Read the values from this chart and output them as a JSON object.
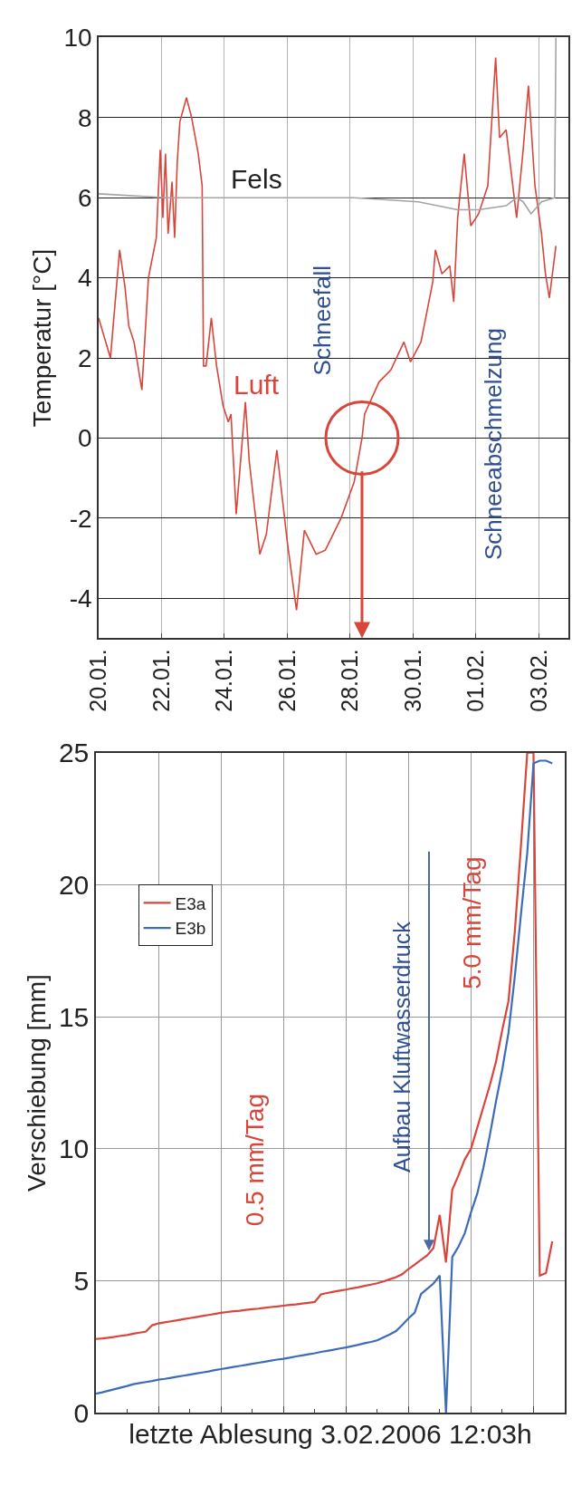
{
  "chart_data": [
    {
      "type": "line",
      "ylabel": "Temperatur [°C]",
      "xlim": [
        "2006-01-20",
        "2006-02-03T22:30"
      ],
      "ylim": [
        -5,
        10
      ],
      "yticks": [
        -4,
        -2,
        0,
        2,
        4,
        6,
        8,
        10
      ],
      "xticks": [
        {
          "value": "2006-01-20",
          "label": "20.01."
        },
        {
          "value": "2006-01-22",
          "label": "22.01."
        },
        {
          "value": "2006-01-24",
          "label": "24.01."
        },
        {
          "value": "2006-01-26",
          "label": "26.01."
        },
        {
          "value": "2006-01-28",
          "label": "28.01."
        },
        {
          "value": "2006-01-30",
          "label": "30.01."
        },
        {
          "value": "2006-02-01",
          "label": "01.02."
        },
        {
          "value": "2006-02-03",
          "label": "03.02."
        }
      ],
      "grid": true,
      "marker": "none",
      "line_style": "solid",
      "series": [
        {
          "name": "Luft",
          "color": "#d8453a",
          "x": [
            "2006-01-20T00:00",
            "2006-01-20T09:00",
            "2006-01-20T16:00",
            "2006-01-20T20:00",
            "2006-01-20T23:00",
            "2006-01-21T03:00",
            "2006-01-21T09:00",
            "2006-01-21T14:00",
            "2006-01-21T20:00",
            "2006-01-21T23:00",
            "2006-01-22T01:00",
            "2006-01-22T03:00",
            "2006-01-22T05:00",
            "2006-01-22T08:00",
            "2006-01-22T10:00",
            "2006-01-22T12:00",
            "2006-01-22T14:00",
            "2006-01-22T19:00",
            "2006-01-22T23:00",
            "2006-01-23T04:00",
            "2006-01-23T07:00",
            "2006-01-23T08:00",
            "2006-01-23T10:00",
            "2006-01-23T14:00",
            "2006-01-23T18:00",
            "2006-01-23T23:00",
            "2006-01-24T03:00",
            "2006-01-24T05:00",
            "2006-01-24T09:00",
            "2006-01-24T16:00",
            "2006-01-24T19:00",
            "2006-01-25T03:00",
            "2006-01-25T08:00",
            "2006-01-25T16:00",
            "2006-01-26T00:00",
            "2006-01-26T07:00",
            "2006-01-26T13:00",
            "2006-01-26T22:00",
            "2006-01-27T05:00",
            "2006-01-27T17:00",
            "2006-01-28T03:00",
            "2006-01-28T09:00",
            "2006-01-28T11:00",
            "2006-01-28T22:00",
            "2006-01-29T07:00",
            "2006-01-29T17:00",
            "2006-01-29T22:00",
            "2006-01-30T06:00",
            "2006-01-30T15:00",
            "2006-01-30T17:00",
            "2006-01-30T22:00",
            "2006-01-31T04:00",
            "2006-01-31T07:00",
            "2006-01-31T10:00",
            "2006-01-31T15:00",
            "2006-01-31T20:00",
            "2006-02-01T02:00",
            "2006-02-01T09:00",
            "2006-02-01T15:00",
            "2006-02-01T18:00",
            "2006-02-01T23:00",
            "2006-02-02T07:00",
            "2006-02-02T12:00",
            "2006-02-02T16:00",
            "2006-02-02T21:00",
            "2006-02-03T02:00",
            "2006-02-03T05:00",
            "2006-02-03T08:00",
            "2006-02-03T13:00"
          ],
          "values": [
            3.0,
            2.0,
            4.7,
            3.8,
            2.8,
            2.4,
            1.2,
            4.0,
            5.0,
            7.2,
            5.5,
            7.1,
            5.1,
            6.4,
            5.0,
            6.9,
            7.9,
            8.5,
            8.0,
            7.1,
            6.3,
            1.8,
            1.8,
            3.0,
            1.8,
            0.8,
            0.4,
            0.6,
            -1.9,
            0.9,
            -0.6,
            -2.9,
            -2.4,
            -0.3,
            -2.6,
            -4.3,
            -2.3,
            -2.9,
            -2.8,
            -2.0,
            -1.1,
            0.0,
            0.6,
            1.4,
            1.7,
            2.4,
            1.9,
            2.4,
            3.9,
            4.7,
            4.1,
            4.3,
            3.4,
            5.5,
            7.1,
            5.3,
            5.6,
            6.3,
            9.5,
            7.5,
            7.7,
            5.5,
            7.2,
            8.8,
            6.3,
            5.1,
            4.1,
            3.5,
            4.8
          ]
        },
        {
          "name": "Fels",
          "color": "#a3a3a3",
          "x": [
            "2006-01-20T00:00",
            "2006-01-22T04:00",
            "2006-01-26T03:00",
            "2006-01-28T03:00",
            "2006-01-30T04:00",
            "2006-01-31T10:00",
            "2006-02-01T02:00",
            "2006-02-01T23:00",
            "2006-02-02T07:00",
            "2006-02-02T12:00",
            "2006-02-02T18:00",
            "2006-02-03T02:00",
            "2006-02-03T12:00",
            "2006-02-03T13:00"
          ],
          "values": [
            6.1,
            6.0,
            6.0,
            6.0,
            5.9,
            5.7,
            5.7,
            5.8,
            6.0,
            5.9,
            5.6,
            5.9,
            6.0,
            10.0
          ]
        }
      ],
      "annotations": [
        {
          "text": "Schneefall",
          "x": "2006-01-28T09:00",
          "y": 0
        },
        "Schneeabschmelzung"
      ]
    },
    {
      "type": "line",
      "ylabel": "Verschiebung [mm]",
      "xlabel": "letzte Ablesung 3.02.2006 12:03h",
      "ylim": [
        0,
        25
      ],
      "yticks": [
        0,
        5,
        10,
        15,
        20,
        25
      ],
      "categories": [
        null,
        null,
        null,
        null,
        null,
        null,
        null,
        null,
        null,
        null,
        null,
        null,
        null,
        null,
        null,
        null,
        null,
        null,
        null,
        null,
        null,
        null,
        null,
        null,
        null,
        null,
        null,
        null,
        null,
        null,
        null,
        null,
        null,
        null,
        null,
        null,
        null,
        null,
        null,
        null,
        null,
        null,
        null,
        null,
        null,
        null,
        null,
        null,
        null,
        null,
        null,
        null,
        null,
        null,
        null,
        null,
        null,
        null,
        null,
        null,
        null,
        null,
        null,
        null,
        null,
        null,
        null,
        null,
        null,
        null,
        null,
        null,
        null,
        null,
        null,
        null
      ],
      "grid": true,
      "legend": "top left",
      "tick_labels": "y",
      "marker": "none",
      "line_style": "solid",
      "series": [
        {
          "name": "E3a",
          "color": "#d8453a",
          "values": [
            2.8,
            2.82,
            2.85,
            2.88,
            2.92,
            2.95,
            3.0,
            3.04,
            3.08,
            3.32,
            3.39,
            3.43,
            3.47,
            3.51,
            3.55,
            3.59,
            3.63,
            3.67,
            3.71,
            3.75,
            3.79,
            3.82,
            3.85,
            3.87,
            3.9,
            3.93,
            3.95,
            3.98,
            4.01,
            4.03,
            4.06,
            4.09,
            4.11,
            4.14,
            4.17,
            4.2,
            4.49,
            4.54,
            4.59,
            4.63,
            4.67,
            4.72,
            4.76,
            4.81,
            4.86,
            4.91,
            4.98,
            5.06,
            5.14,
            5.25,
            5.45,
            5.62,
            5.8,
            5.97,
            6.25,
            7.5,
            5.7,
            8.45,
            9.0,
            9.6,
            10.0,
            10.8,
            11.6,
            12.4,
            13.3,
            14.5,
            15.6,
            18.2,
            21.5,
            25,
            25,
            5.2,
            5.3,
            6.5,
            null,
            null
          ]
        },
        {
          "name": "E3b",
          "color": "#3c6cb8",
          "values": [
            0.73,
            0.78,
            0.84,
            0.9,
            0.96,
            1.02,
            1.09,
            1.13,
            1.17,
            1.21,
            1.26,
            1.29,
            1.33,
            1.37,
            1.41,
            1.45,
            1.49,
            1.53,
            1.57,
            1.62,
            1.66,
            1.7,
            1.74,
            1.78,
            1.82,
            1.86,
            1.9,
            1.94,
            1.98,
            2.02,
            2.05,
            2.09,
            2.14,
            2.18,
            2.22,
            2.26,
            2.31,
            2.35,
            2.39,
            2.44,
            2.48,
            2.53,
            2.58,
            2.64,
            2.69,
            2.75,
            2.86,
            2.97,
            3.1,
            3.33,
            3.58,
            3.8,
            4.5,
            4.7,
            4.9,
            5.2,
            0,
            5.9,
            6.3,
            6.8,
            7.6,
            8.3,
            9.3,
            10.5,
            11.8,
            13.0,
            14.4,
            16.5,
            18.9,
            21.2,
            24.6,
            24.7,
            24.7,
            24.6,
            null,
            null
          ]
        }
      ],
      "annotations": [
        "0.5 mm/Tag",
        "Aufbau Kluftwasserdruck",
        "5.0 mm/Tag"
      ]
    }
  ]
}
